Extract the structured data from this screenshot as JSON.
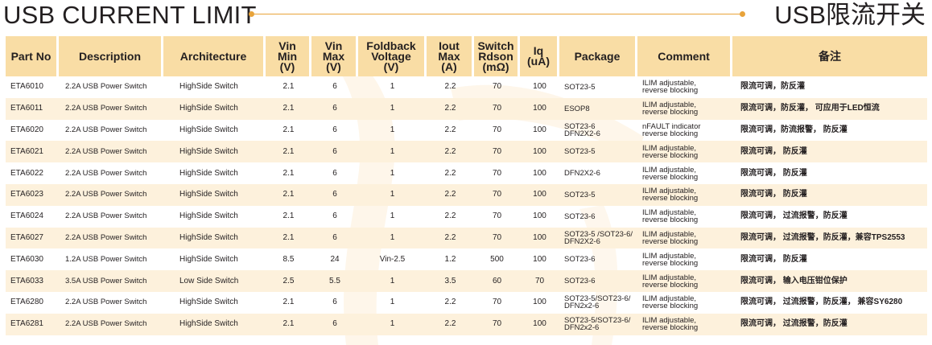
{
  "header": {
    "title_en": "USB CURRENT LIMIT",
    "title_cn": "USB限流开关",
    "accent_color": "#e8a33a"
  },
  "table": {
    "header_color": "#f9dda5",
    "stripe_color": "#fdf1dc",
    "columns": [
      {
        "lines": [
          "Part No"
        ]
      },
      {
        "lines": [
          "Description"
        ]
      },
      {
        "lines": [
          "Architecture"
        ]
      },
      {
        "lines": [
          "Vin",
          "Min",
          "(V)"
        ]
      },
      {
        "lines": [
          "Vin",
          "Max",
          "(V)"
        ]
      },
      {
        "lines": [
          "Foldback",
          "Voltage",
          "(V)"
        ]
      },
      {
        "lines": [
          "Iout",
          "Max",
          "(A)"
        ]
      },
      {
        "lines": [
          "Switch",
          "Rdson",
          "(mΩ)"
        ]
      },
      {
        "lines": [
          "Iq",
          "(uA)"
        ]
      },
      {
        "lines": [
          "Package"
        ]
      },
      {
        "lines": [
          "Comment"
        ]
      },
      {
        "lines": [
          "备注"
        ]
      }
    ],
    "rows": [
      {
        "part": "ETA6010",
        "desc": "2.2A USB Power Switch",
        "arch": "HighSide Switch",
        "vin_min": "2.1",
        "vin_max": "6",
        "foldback": "1",
        "iout": "2.2",
        "rdson": "70",
        "iq": "100",
        "package": [
          "SOT23-5"
        ],
        "comment": [
          "ILIM adjustable,",
          "reverse blocking"
        ],
        "note": "限流可调，防反灌"
      },
      {
        "part": "ETA6011",
        "desc": "2.2A USB Power Switch",
        "arch": "HighSide Switch",
        "vin_min": "2.1",
        "vin_max": "6",
        "foldback": "1",
        "iout": "2.2",
        "rdson": "70",
        "iq": "100",
        "package": [
          "ESOP8"
        ],
        "comment": [
          "ILIM adjustable,",
          "reverse blocking"
        ],
        "note": "限流可调，防反灌， 可应用于LED恒流"
      },
      {
        "part": "ETA6020",
        "desc": "2.2A USB Power Switch",
        "arch": "HighSide Switch",
        "vin_min": "2.1",
        "vin_max": "6",
        "foldback": "1",
        "iout": "2.2",
        "rdson": "70",
        "iq": "100",
        "package": [
          "SOT23-6",
          "DFN2X2-6"
        ],
        "comment": [
          "nFAULT indicator",
          "reverse blocking"
        ],
        "note": "限流可调，防流报警， 防反灌"
      },
      {
        "part": "ETA6021",
        "desc": "2.2A USB Power Switch",
        "arch": "HighSide Switch",
        "vin_min": "2.1",
        "vin_max": "6",
        "foldback": "1",
        "iout": "2.2",
        "rdson": "70",
        "iq": "100",
        "package": [
          "SOT23-5"
        ],
        "comment": [
          "ILIM adjustable,",
          "reverse blocking"
        ],
        "note": "限流可调， 防反灌"
      },
      {
        "part": "ETA6022",
        "desc": "2.2A USB Power Switch",
        "arch": "HighSide Switch",
        "vin_min": "2.1",
        "vin_max": "6",
        "foldback": "1",
        "iout": "2.2",
        "rdson": "70",
        "iq": "100",
        "package": [
          "DFN2X2-6"
        ],
        "comment": [
          "ILIM adjustable,",
          "reverse blocking"
        ],
        "note": "限流可调， 防反灌"
      },
      {
        "part": "ETA6023",
        "desc": "2.2A USB Power Switch",
        "arch": "HighSide Switch",
        "vin_min": "2.1",
        "vin_max": "6",
        "foldback": "1",
        "iout": "2.2",
        "rdson": "70",
        "iq": "100",
        "package": [
          "SOT23-5"
        ],
        "comment": [
          "ILIM adjustable,",
          "reverse blocking"
        ],
        "note": "限流可调， 防反灌"
      },
      {
        "part": "ETA6024",
        "desc": "2.2A USB Power Switch",
        "arch": "HighSide Switch",
        "vin_min": "2.1",
        "vin_max": "6",
        "foldback": "1",
        "iout": "2.2",
        "rdson": "70",
        "iq": "100",
        "package": [
          "SOT23-6"
        ],
        "comment": [
          "ILIM adjustable,",
          "reverse blocking"
        ],
        "note": "限流可调， 过流报警，防反灌"
      },
      {
        "part": "ETA6027",
        "desc": "2.2A USB Power Switch",
        "arch": "HighSide Switch",
        "vin_min": "2.1",
        "vin_max": "6",
        "foldback": "1",
        "iout": "2.2",
        "rdson": "70",
        "iq": "100",
        "package": [
          "SOT23-5 /SOT23-6/",
          "DFN2X2-6"
        ],
        "comment": [
          "ILIM adjustable,",
          "reverse blocking"
        ],
        "note": "限流可调， 过流报警，防反灌，兼容TPS2553"
      },
      {
        "part": "ETA6030",
        "desc": "1.2A USB Power Switch",
        "arch": "HighSide Switch",
        "vin_min": "8.5",
        "vin_max": "24",
        "foldback": "Vin-2.5",
        "iout": "1.2",
        "rdson": "500",
        "iq": "100",
        "package": [
          "SOT23-6"
        ],
        "comment": [
          "ILIM adjustable,",
          "reverse blocking"
        ],
        "note": "限流可调， 防反灌"
      },
      {
        "part": "ETA6033",
        "desc": "3.5A USB Power Switch",
        "arch": "Low Side Switch",
        "vin_min": "2.5",
        "vin_max": "5.5",
        "foldback": "1",
        "iout": "3.5",
        "rdson": "60",
        "iq": "70",
        "package": [
          "SOT23-6"
        ],
        "comment": [
          "ILIM adjustable,",
          "reverse blocking"
        ],
        "note": "限流可调， 输入电压钳位保护"
      },
      {
        "part": "ETA6280",
        "desc": "2.2A USB Power Switch",
        "arch": "HighSide Switch",
        "vin_min": "2.1",
        "vin_max": "6",
        "foldback": "1",
        "iout": "2.2",
        "rdson": "70",
        "iq": "100",
        "package": [
          "SOT23-5/SOT23-6/",
          "DFN2x2-6"
        ],
        "comment": [
          "ILIM adjustable,",
          "reverse blocking"
        ],
        "note": "限流可调， 过流报警，防反灌， 兼容SY6280"
      },
      {
        "part": "ETA6281",
        "desc": "2.2A USB Power Switch",
        "arch": "HighSide Switch",
        "vin_min": "2.1",
        "vin_max": "6",
        "foldback": "1",
        "iout": "2.2",
        "rdson": "70",
        "iq": "100",
        "package": [
          "SOT23-5/SOT23-6/",
          "DFN2x2-6"
        ],
        "comment": [
          "ILIM adjustable,",
          "reverse blocking"
        ],
        "note": "限流可调， 过流报警，防反灌"
      }
    ]
  }
}
